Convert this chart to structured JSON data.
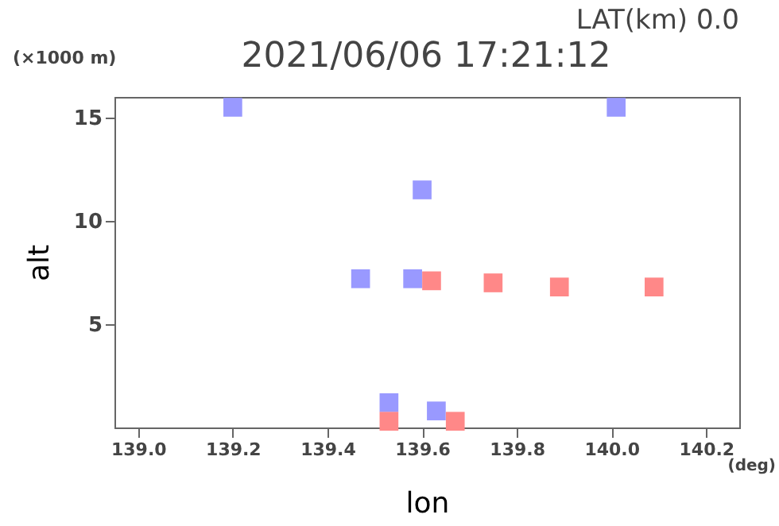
{
  "chart_data": {
    "type": "scatter",
    "title": "2021/06/06 17:21:12",
    "xlabel": "lon",
    "ylabel": "alt",
    "annotations": [
      "LAT(km) 0.0",
      "(×1000 m)",
      "(deg)"
    ],
    "xlim": [
      138.95,
      140.27
    ],
    "xticks": [
      {
        "value": 139,
        "label": "139.0"
      },
      139.2,
      139.4,
      139.6,
      139.8,
      {
        "value": 140,
        "label": "140.0"
      },
      140.2
    ],
    "ylim": [
      0,
      16
    ],
    "yticks": [
      5,
      10,
      15
    ],
    "marker": "square",
    "grid": false,
    "series": [
      {
        "color": "#9999ff",
        "x": [
          139.2,
          140.01,
          139.6,
          139.47,
          139.58,
          139.53,
          139.63
        ],
        "values": [
          15.5,
          15.5,
          11.5,
          7.2,
          7.2,
          1.2,
          0.8
        ]
      },
      {
        "color": "#ff8888",
        "x": [
          139.62,
          139.75,
          139.89,
          140.09,
          139.53,
          139.67
        ],
        "values": [
          7.1,
          7.0,
          6.8,
          6.8,
          0.3,
          0.3
        ]
      }
    ]
  }
}
